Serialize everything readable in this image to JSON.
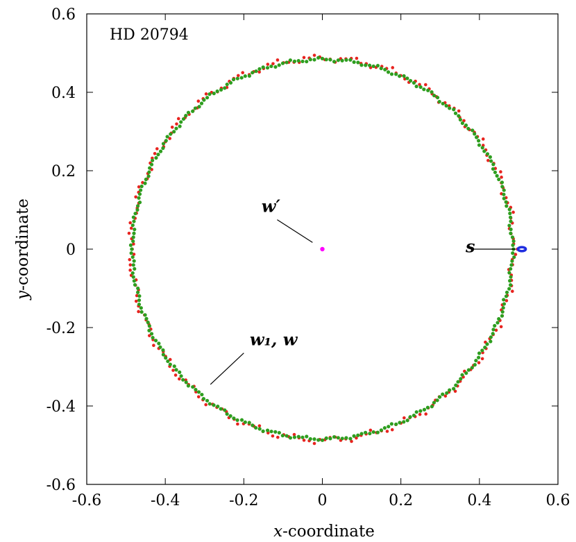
{
  "chart_data": {
    "type": "scatter",
    "title": "HD 20794",
    "xlabel": {
      "var": "x",
      "rest": "-coordinate"
    },
    "ylabel": {
      "var": "y",
      "rest": "-coordinate"
    },
    "xlim": [
      -0.6,
      0.6
    ],
    "ylim": [
      -0.6,
      0.6
    ],
    "xticks": [
      -0.6,
      -0.4,
      -0.2,
      0,
      0.2,
      0.4,
      0.6
    ],
    "yticks": [
      -0.6,
      -0.4,
      -0.2,
      0,
      0.2,
      0.4,
      0.6
    ],
    "xtick_labels": [
      "-0.6",
      "-0.4",
      "-0.2",
      "0",
      "0.2",
      "0.4",
      "0.6"
    ],
    "ytick_labels": [
      "-0.6",
      "-0.4",
      "-0.2",
      "0",
      "0.2",
      "0.4",
      "0.6"
    ],
    "grid": false,
    "series": [
      {
        "label": "w1-ring",
        "shape": "ring",
        "center": [
          0,
          0
        ],
        "radius": 0.487,
        "jitter": 0.006,
        "count": 230,
        "color": "#e8231f"
      },
      {
        "label": "w-ring",
        "shape": "ring",
        "center": [
          0,
          0
        ],
        "radius": 0.484,
        "jitter": 0.003,
        "count": 300,
        "color": "#2e9e1f"
      },
      {
        "label": "s-loop",
        "shape": "ellipse",
        "center": [
          0.508,
          0.0
        ],
        "rx": 0.01,
        "ry": 0.005,
        "color": "#1f2de0"
      },
      {
        "label": "w-prime",
        "shape": "point",
        "x": 0.0,
        "y": 0.0,
        "color": "#ff00ff"
      }
    ],
    "annotations": [
      {
        "text": "w′",
        "text_at": [
          -0.155,
          0.095
        ],
        "line_from": [
          -0.115,
          0.075
        ],
        "line_to": [
          -0.025,
          0.017
        ]
      },
      {
        "text": "w₁, w",
        "text_at": [
          -0.185,
          -0.245
        ],
        "line_from": [
          -0.2,
          -0.265
        ],
        "line_to": [
          -0.285,
          -0.345
        ]
      },
      {
        "text": "s",
        "text_at": [
          0.365,
          -0.008
        ],
        "line_from": [
          0.385,
          0.0
        ],
        "line_to": [
          0.492,
          0.0
        ]
      }
    ]
  }
}
